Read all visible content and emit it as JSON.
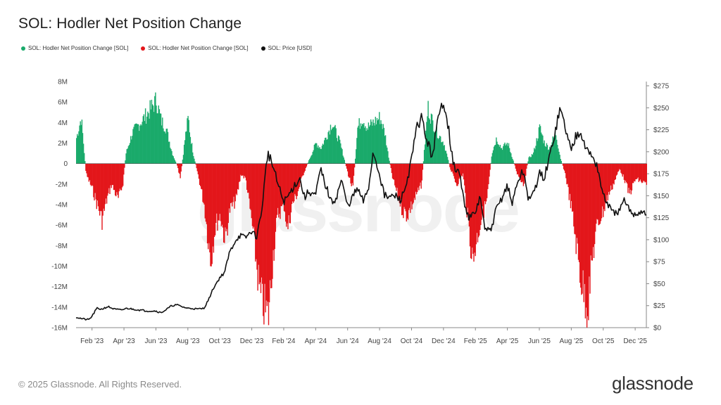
{
  "title": "SOL: Hodler Net Position Change",
  "legend": {
    "positive": "SOL: Hodler Net Position Change [SOL]",
    "negative": "SOL: Hodler Net Position Change [SOL]",
    "price": "SOL: Price [USD]"
  },
  "colors": {
    "positive": "#1aaa6b",
    "negative": "#e3161b",
    "price": "#111111",
    "axis": "#888888"
  },
  "footer": {
    "copyright": "© 2025 Glassnode. All Rights Reserved.",
    "logo": "glassnode",
    "watermark": "glassnode"
  },
  "chart_data": {
    "type": "area",
    "title": "SOL: Hodler Net Position Change",
    "x_range": [
      "2023-01-01",
      "2025-12-20"
    ],
    "x_tick_labels": [
      "Feb '23",
      "Apr '23",
      "Jun '23",
      "Aug '23",
      "Oct '23",
      "Dec '23",
      "Feb '24",
      "Apr '24",
      "Jun '24",
      "Aug '24",
      "Oct '24",
      "Dec '24",
      "Feb '25",
      "Apr '25",
      "Jun '25",
      "Aug '25",
      "Oct '25",
      "Dec '25"
    ],
    "y_left": {
      "label": "Hodler Net Position Change [SOL]",
      "min": -16000000,
      "max": 8000000,
      "ticks": [
        "8M",
        "6M",
        "4M",
        "2M",
        "0",
        "-2M",
        "-4M",
        "-6M",
        "-8M",
        "-10M",
        "-12M",
        "-14M",
        "-16M"
      ]
    },
    "y_right": {
      "label": "Price [USD]",
      "min": 0,
      "max": 275,
      "ticks": [
        "$275",
        "$250",
        "$225",
        "$200",
        "$175",
        "$150",
        "$125",
        "$100",
        "$75",
        "$50",
        "$25",
        "$0"
      ]
    },
    "series": [
      {
        "name": "SOL: Hodler Net Position Change [SOL]",
        "axis": "left",
        "x": [
          0.0,
          0.3,
          0.6,
          1.0,
          1.3,
          1.6,
          1.9,
          2.2,
          2.6,
          2.9,
          3.1,
          3.5,
          4.0,
          4.5,
          5.0,
          5.3,
          5.6,
          6.0,
          6.3,
          6.5,
          6.8,
          7.0,
          7.1,
          7.3,
          7.6,
          8.0,
          8.4,
          8.7,
          9.0,
          9.3,
          9.6,
          10.0,
          10.3,
          10.6,
          11.0,
          11.5,
          12.0,
          12.3,
          12.6,
          13.0,
          13.2,
          13.5,
          13.8,
          14.2,
          14.6,
          15.0,
          15.3,
          15.6,
          16.0,
          16.5,
          17.0,
          17.3,
          17.6,
          17.9,
          18.2,
          18.6,
          19.0,
          19.3,
          19.5,
          19.8,
          20.1,
          20.4,
          20.7,
          21.0,
          21.3,
          21.6,
          22.0,
          22.3,
          22.6,
          23.0,
          23.4,
          23.8,
          24.2,
          24.5,
          24.8,
          25.1,
          25.4,
          25.7,
          26.0,
          26.3,
          26.6,
          27.0,
          27.3,
          27.6,
          28.0,
          28.3,
          28.6,
          29.0,
          29.3,
          29.6,
          30.0,
          30.3,
          30.6,
          31.0,
          31.3,
          31.6,
          32.0,
          32.3,
          32.6,
          33.0,
          33.3,
          33.6,
          34.0,
          34.3,
          34.6,
          35.0,
          35.7
        ],
        "y": [
          2500000,
          4500000,
          -1000000,
          -2500000,
          -4000000,
          -5500000,
          -3500000,
          -2000000,
          -3500000,
          -2000000,
          1000000,
          3000000,
          4000000,
          5000000,
          6200000,
          4200000,
          3500000,
          1000000,
          -200000,
          -1500000,
          2500000,
          4500000,
          3000000,
          1000000,
          -1000000,
          -4000000,
          -9500000,
          -6000000,
          -5000000,
          -7500000,
          -4500000,
          -3500000,
          -1000000,
          -1500000,
          -6000000,
          -13000000,
          -15000000,
          -9000000,
          -5000000,
          -4000000,
          -6500000,
          -4000000,
          -3000000,
          -1000000,
          500000,
          2000000,
          1500000,
          2500000,
          4000000,
          2000000,
          -1000000,
          -2500000,
          3500000,
          4500000,
          3500000,
          4000000,
          4500000,
          3000000,
          1000000,
          -1500000,
          -3000000,
          -4500000,
          -5000000,
          -4000000,
          -3000000,
          -2000000,
          5500000,
          4000000,
          3000000,
          2000000,
          -500000,
          -2000000,
          -1000000,
          -5500000,
          -9500000,
          -7000000,
          -5000000,
          -3500000,
          1000000,
          2500000,
          1500000,
          2000000,
          500000,
          -1000000,
          -2000000,
          500000,
          1000000,
          3500000,
          2000000,
          1500000,
          3000000,
          500000,
          -1000000,
          -4500000,
          -8000000,
          -11500000,
          -14000000,
          -9000000,
          -6000000,
          -4500000,
          -3000000,
          -2000000,
          -500000,
          -1500000,
          -3000000,
          -1500000,
          -2000000
        ]
      },
      {
        "name": "SOL: Price [USD]",
        "axis": "right",
        "x": [
          0.0,
          0.4,
          0.8,
          1.0,
          1.3,
          1.6,
          2.0,
          2.4,
          2.8,
          3.2,
          3.6,
          4.0,
          4.5,
          5.0,
          5.3,
          5.6,
          6.0,
          6.3,
          6.6,
          7.0,
          7.3,
          7.6,
          8.0,
          8.3,
          8.6,
          9.0,
          9.3,
          9.6,
          10.0,
          10.3,
          10.6,
          11.0,
          11.3,
          11.6,
          12.0,
          12.3,
          12.6,
          13.0,
          13.3,
          13.6,
          14.0,
          14.3,
          14.6,
          15.0,
          15.3,
          15.6,
          16.0,
          16.3,
          16.6,
          17.0,
          17.3,
          17.6,
          18.0,
          18.3,
          18.6,
          19.0,
          19.3,
          19.6,
          20.0,
          20.3,
          20.6,
          21.0,
          21.3,
          21.6,
          22.0,
          22.3,
          22.6,
          23.0,
          23.3,
          23.6,
          24.0,
          24.3,
          24.6,
          25.0,
          25.3,
          25.6,
          26.0,
          26.3,
          26.6,
          27.0,
          27.3,
          27.6,
          28.0,
          28.3,
          28.6,
          29.0,
          29.3,
          29.6,
          30.0,
          30.3,
          30.6,
          31.0,
          31.3,
          31.6,
          32.0,
          32.3,
          32.6,
          33.0,
          33.3,
          33.6,
          34.0,
          34.3,
          34.6,
          35.0,
          35.3,
          35.7
        ],
        "y": [
          12,
          10,
          9,
          13,
          22,
          21,
          24,
          21,
          20,
          22,
          21,
          20,
          19,
          19,
          17,
          20,
          25,
          26,
          24,
          22,
          22,
          21,
          22,
          32,
          45,
          57,
          63,
          85,
          100,
          105,
          102,
          110,
          103,
          130,
          200,
          185,
          165,
          143,
          150,
          160,
          170,
          148,
          155,
          150,
          180,
          163,
          142,
          148,
          168,
          138,
          148,
          158,
          143,
          158,
          200,
          175,
          150,
          148,
          150,
          145,
          158,
          190,
          225,
          240,
          210,
          195,
          230,
          260,
          230,
          185,
          175,
          142,
          125,
          130,
          150,
          110,
          112,
          135,
          145,
          162,
          140,
          165,
          178,
          148,
          150,
          175,
          170,
          190,
          225,
          248,
          230,
          200,
          220,
          225,
          200,
          195,
          185,
          150,
          140,
          130,
          132,
          144,
          135,
          128,
          132,
          130
        ]
      }
    ]
  }
}
